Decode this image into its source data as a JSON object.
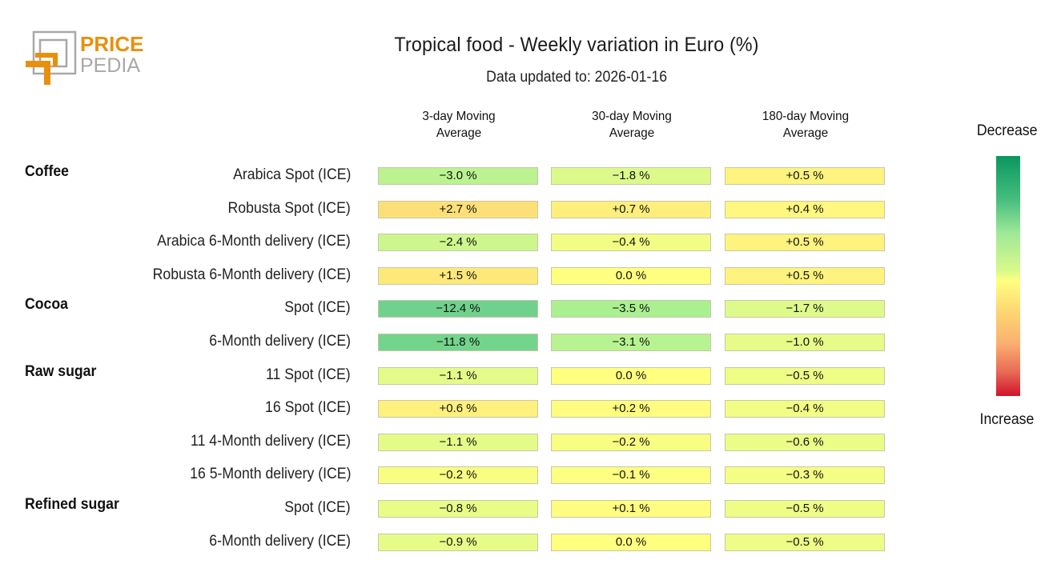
{
  "logo": {
    "line1": "PRICE",
    "line2": "PEDIA",
    "accent_color": "#e8900c",
    "frame_color": "#a8a8a8"
  },
  "chart_data": {
    "type": "heatmap",
    "title": "Tropical food - Weekly variation in Euro (%)",
    "subtitle": "Data updated to: 2026-01-16",
    "columns": [
      "3-day Moving\nAverage",
      "30-day Moving\nAverage",
      "180-day Moving\nAverage"
    ],
    "column_lines": [
      [
        "3-day Moving",
        "Average"
      ],
      [
        "30-day Moving",
        "Average"
      ],
      [
        "180-day Moving",
        "Average"
      ]
    ],
    "unit": "%",
    "groups": [
      {
        "name": "Coffee",
        "rows": [
          {
            "label": "Arabica Spot (ICE)",
            "values": [
              -3.0,
              -1.8,
              0.5
            ]
          },
          {
            "label": "Robusta Spot (ICE)",
            "values": [
              2.7,
              0.7,
              0.4
            ]
          },
          {
            "label": "Arabica 6-Month delivery (ICE)",
            "values": [
              -2.4,
              -0.4,
              0.5
            ]
          },
          {
            "label": "Robusta 6-Month delivery (ICE)",
            "values": [
              1.5,
              0.0,
              0.5
            ]
          }
        ]
      },
      {
        "name": "Cocoa",
        "rows": [
          {
            "label": "Spot (ICE)",
            "values": [
              -12.4,
              -3.5,
              -1.7
            ]
          },
          {
            "label": "6-Month delivery (ICE)",
            "values": [
              -11.8,
              -3.1,
              -1.0
            ]
          }
        ]
      },
      {
        "name": "Raw sugar",
        "rows": [
          {
            "label": "11 Spot (ICE)",
            "values": [
              -1.1,
              0.0,
              -0.5
            ]
          },
          {
            "label": "16 Spot (ICE)",
            "values": [
              0.6,
              0.2,
              -0.4
            ]
          },
          {
            "label": "11 4-Month delivery (ICE)",
            "values": [
              -1.1,
              -0.2,
              -0.6
            ]
          },
          {
            "label": "16 5-Month delivery (ICE)",
            "values": [
              -0.2,
              -0.1,
              -0.3
            ]
          }
        ]
      },
      {
        "name": "Refined sugar",
        "rows": [
          {
            "label": "Spot (ICE)",
            "values": [
              -0.8,
              0.1,
              -0.5
            ]
          },
          {
            "label": "6-Month delivery (ICE)",
            "values": [
              -0.9,
              0.0,
              -0.5
            ]
          }
        ]
      }
    ],
    "legend": {
      "top_label": "Decrease",
      "bottom_label": "Increase",
      "colors": {
        "decrease": "#0a975f",
        "neutral": "#ffff80",
        "increase": "#d0132a"
      }
    }
  }
}
